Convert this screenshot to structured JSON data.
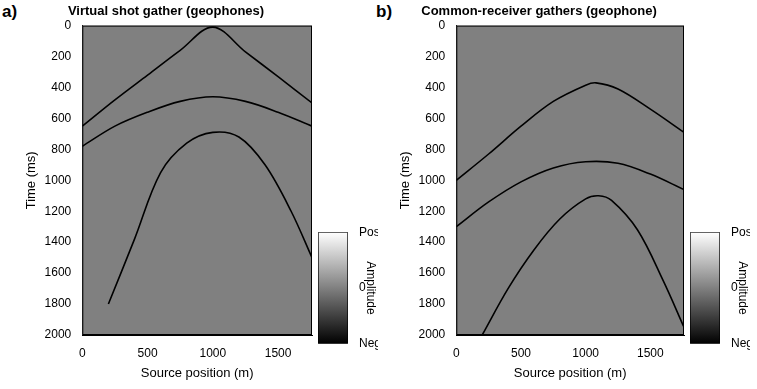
{
  "chart_data": [
    {
      "type": "line",
      "panel_label": "a)",
      "title": "Virtual shot gather (geophones)",
      "x_label": "Source position (m)",
      "y_label": "Time (ms)",
      "xlim": [
        0,
        1760
      ],
      "xticks": [
        0,
        500,
        1000,
        1500
      ],
      "ylim": [
        2000,
        0
      ],
      "yticks": [
        0,
        200,
        400,
        600,
        800,
        1000,
        1200,
        1400,
        1600,
        1800,
        2000
      ],
      "grid": false,
      "series": [
        {
          "color": "#000000",
          "x": [
            0,
            250,
            500,
            750,
            1000,
            1250,
            1500,
            1760
          ],
          "values": [
            650,
            480,
            320,
            160,
            10,
            170,
            330,
            500
          ]
        },
        {
          "color": "#000000",
          "x": [
            0,
            250,
            500,
            750,
            1000,
            1250,
            1500,
            1760
          ],
          "values": [
            780,
            650,
            560,
            490,
            460,
            490,
            560,
            650
          ]
        },
        {
          "color": "#000000",
          "x": [
            200,
            400,
            600,
            800,
            1000,
            1200,
            1400,
            1600,
            1760
          ],
          "values": [
            1800,
            1380,
            950,
            760,
            690,
            720,
            900,
            1200,
            1500
          ]
        }
      ],
      "colorbar": {
        "title": "Amplitude",
        "range": [
          -1,
          1
        ],
        "colors": [
          "#000000",
          "#808080",
          "#ffffff"
        ],
        "ticks": [
          {
            "value": -1,
            "label": "Neg"
          },
          {
            "value": 0,
            "label": "0"
          },
          {
            "value": 1,
            "label": "Pos"
          }
        ]
      }
    },
    {
      "type": "line",
      "panel_label": "b)",
      "title": "Common-receiver gathers (geophone)",
      "x_label": "Source position (m)",
      "y_label": "Time (ms)",
      "xlim": [
        0,
        1760
      ],
      "xticks": [
        0,
        500,
        1000,
        1500
      ],
      "ylim": [
        2000,
        0
      ],
      "yticks": [
        0,
        200,
        400,
        600,
        800,
        1000,
        1200,
        1400,
        1600,
        1800,
        2000
      ],
      "grid": false,
      "series": [
        {
          "color": "#000000",
          "x": [
            0,
            250,
            500,
            750,
            1000,
            1080,
            1250,
            1500,
            1760
          ],
          "values": [
            1000,
            830,
            650,
            490,
            385,
            370,
            410,
            540,
            690
          ]
        },
        {
          "color": "#000000",
          "x": [
            0,
            250,
            500,
            750,
            1000,
            1250,
            1500,
            1760
          ],
          "values": [
            1300,
            1140,
            1010,
            920,
            880,
            890,
            960,
            1060
          ]
        },
        {
          "color": "#000000",
          "x": [
            200,
            400,
            600,
            800,
            1000,
            1100,
            1200,
            1400,
            1600,
            1760
          ],
          "values": [
            2000,
            1700,
            1450,
            1250,
            1120,
            1100,
            1130,
            1320,
            1650,
            1950
          ]
        }
      ],
      "colorbar": {
        "title": "Amplitude",
        "range": [
          -1,
          1
        ],
        "colors": [
          "#000000",
          "#808080",
          "#ffffff"
        ],
        "ticks": [
          {
            "value": -1,
            "label": "Neg"
          },
          {
            "value": 0,
            "label": "0"
          },
          {
            "value": 1,
            "label": "Pos"
          }
        ]
      }
    }
  ]
}
